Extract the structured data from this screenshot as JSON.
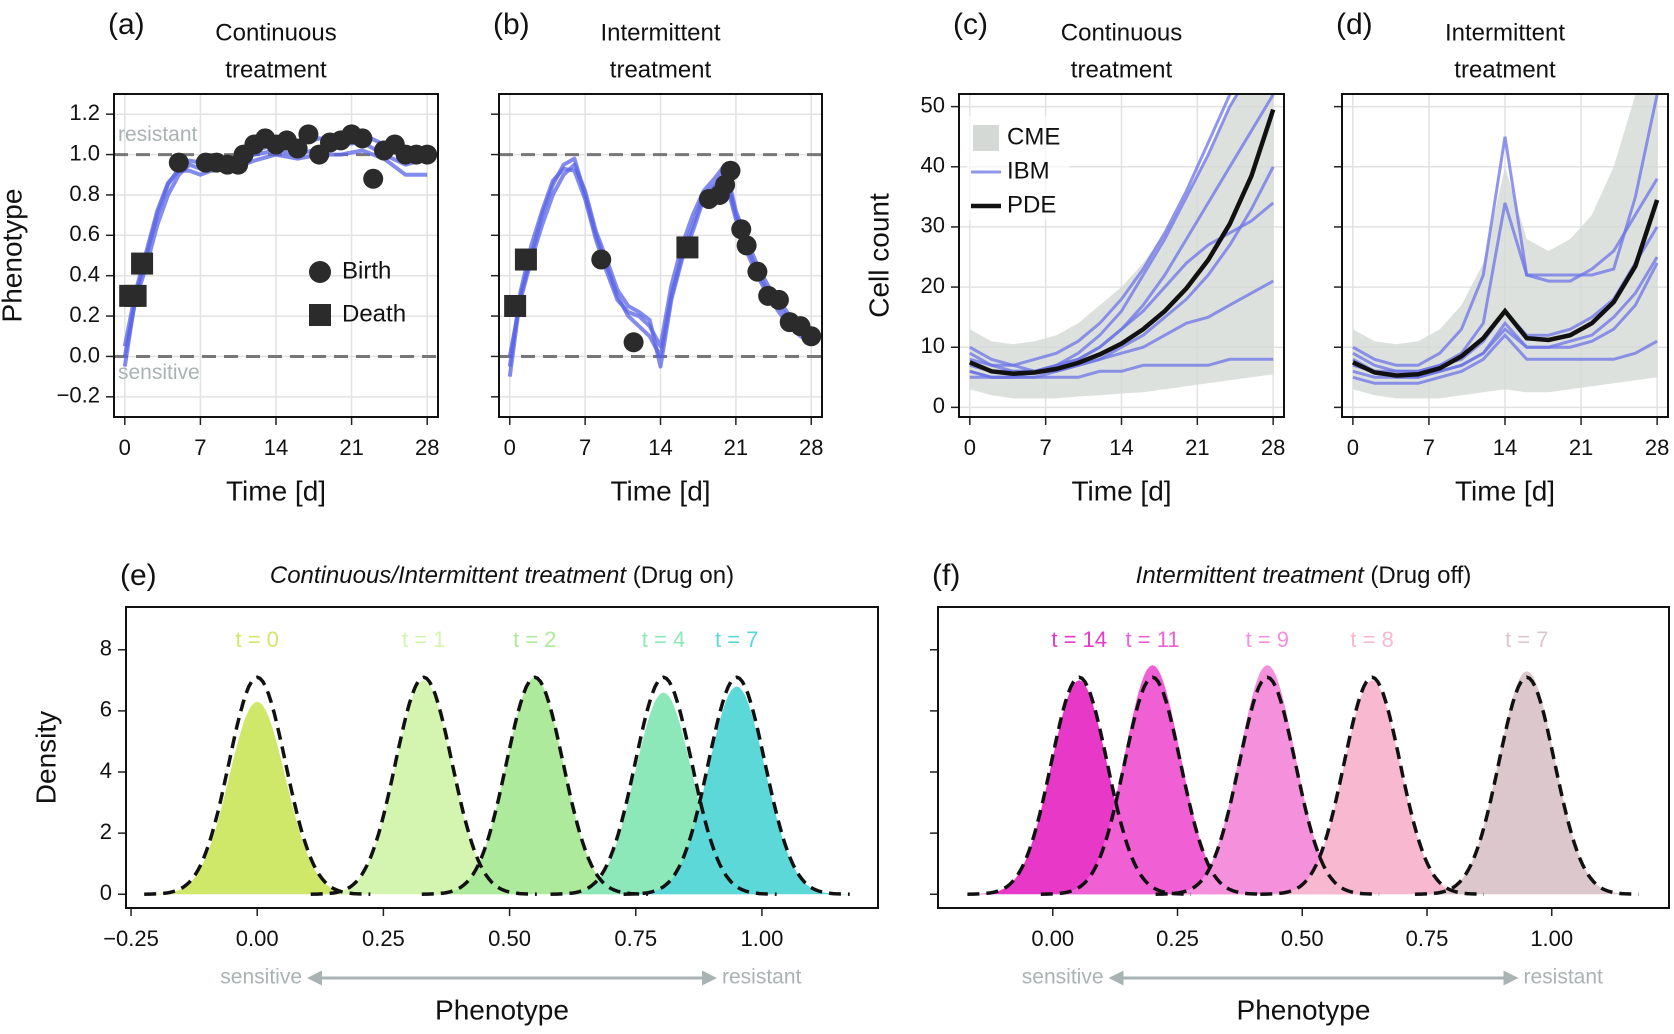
{
  "chart_data": [
    {
      "type": "line",
      "label": "(a)",
      "title_lines": [
        "Continuous",
        "treatment"
      ],
      "xlabel": "Time [d]",
      "ylabel": "Phenotype",
      "xlim": [
        -1,
        29
      ],
      "ylim": [
        -0.3,
        1.3
      ],
      "xticks": [
        0,
        7,
        14,
        21,
        28
      ],
      "yticks": [
        {
          "value": -0.2,
          "label": "−0.2"
        },
        {
          "value": 0,
          "label": "0.0"
        },
        0.2,
        0.4,
        0.6,
        0.8,
        {
          "value": 1,
          "label": "1.0"
        },
        1.2
      ],
      "grid": true,
      "legend": "center right",
      "hlines": [
        {
          "value": 0,
          "label": "sensitive"
        },
        {
          "value": 1,
          "label": "resistant"
        }
      ],
      "series": [
        {
          "color": "#5a64e6",
          "x": [
            0,
            1,
            2,
            3,
            4,
            5,
            6,
            7,
            8,
            10,
            12,
            14,
            16,
            18,
            20,
            22,
            24,
            26,
            28
          ],
          "values": [
            -0.05,
            0.3,
            0.5,
            0.7,
            0.85,
            0.93,
            0.97,
            0.96,
            0.98,
            0.97,
            1.02,
            1.05,
            1.05,
            1.08,
            1.07,
            1.1,
            1.05,
            1.02,
            1.0
          ]
        },
        {
          "color": "#5a64e6",
          "x": [
            0,
            1,
            2,
            3,
            4,
            5,
            6,
            7,
            8,
            10,
            12,
            14,
            16,
            18,
            20,
            22,
            24,
            26,
            28
          ],
          "values": [
            0,
            0.28,
            0.45,
            0.65,
            0.8,
            0.9,
            0.95,
            0.93,
            0.95,
            0.96,
            1.0,
            1.02,
            1.0,
            1.03,
            1.05,
            1.06,
            1.0,
            0.95,
            0.98
          ]
        },
        {
          "color": "#5a64e6",
          "x": [
            0,
            1,
            2,
            3,
            4,
            5,
            6,
            7,
            8,
            10,
            12,
            14,
            16,
            18,
            20,
            22,
            24,
            26,
            28
          ],
          "values": [
            0.05,
            0.32,
            0.52,
            0.72,
            0.86,
            0.92,
            0.92,
            0.9,
            0.92,
            0.93,
            0.97,
            1.0,
            0.98,
            1.0,
            1.0,
            1.02,
            0.98,
            0.9,
            0.9
          ]
        }
      ],
      "markers": [
        {
          "name": "Birth",
          "shape": "circle",
          "color": "#2b2b2b",
          "x": [
            5,
            7.5,
            8.5,
            9.5,
            10.5,
            11,
            12,
            13,
            14,
            15,
            16,
            17,
            18,
            19,
            20,
            21,
            22,
            23,
            24,
            25,
            26,
            27,
            28
          ],
          "values": [
            0.96,
            0.96,
            0.96,
            0.95,
            0.95,
            1.0,
            1.05,
            1.08,
            1.05,
            1.07,
            1.03,
            1.1,
            1.0,
            1.06,
            1.07,
            1.1,
            1.08,
            0.88,
            1.02,
            1.05,
            1.0,
            1.0,
            1.0
          ]
        },
        {
          "name": "Death",
          "shape": "square",
          "color": "#2b2b2b",
          "x": [
            0.5,
            1,
            1.6
          ],
          "values": [
            0.3,
            0.3,
            0.46
          ]
        }
      ]
    },
    {
      "type": "line",
      "label": "(b)",
      "title_lines": [
        "Intermittent",
        "treatment"
      ],
      "xlabel": "Time [d]",
      "xlim": [
        -1,
        29
      ],
      "ylim": [
        -0.3,
        1.3
      ],
      "xticks": [
        0,
        7,
        14,
        21,
        28
      ],
      "yticks": [
        -0.2,
        0,
        0.2,
        0.4,
        0.6,
        0.8,
        1,
        1.2
      ],
      "ytick_labels": false,
      "grid": true,
      "hlines": [
        0,
        1
      ],
      "series": [
        {
          "color": "#5a64e6",
          "x": [
            0,
            1,
            2,
            3,
            4,
            5,
            6,
            7,
            8,
            9,
            10,
            11,
            12,
            13,
            14,
            15,
            16,
            17,
            18,
            19,
            20,
            21,
            22,
            23,
            24,
            25,
            26,
            27,
            28
          ],
          "values": [
            -0.1,
            0.3,
            0.5,
            0.7,
            0.85,
            0.95,
            0.98,
            0.8,
            0.6,
            0.45,
            0.3,
            0.2,
            0.15,
            0.1,
            0.0,
            0.3,
            0.5,
            0.65,
            0.8,
            0.85,
            0.92,
            0.7,
            0.55,
            0.42,
            0.32,
            0.25,
            0.18,
            0.13,
            0.1
          ]
        },
        {
          "color": "#5a64e6",
          "x": [
            0,
            1,
            2,
            3,
            4,
            5,
            6,
            7,
            8,
            9,
            10,
            11,
            12,
            13,
            14,
            15,
            16,
            17,
            18,
            19,
            20,
            21,
            22,
            23,
            24,
            25,
            26,
            27,
            28
          ],
          "values": [
            -0.05,
            0.32,
            0.55,
            0.72,
            0.87,
            0.93,
            0.92,
            0.78,
            0.58,
            0.42,
            0.28,
            0.22,
            0.2,
            0.15,
            0.05,
            0.35,
            0.55,
            0.7,
            0.82,
            0.88,
            0.95,
            0.72,
            0.58,
            0.45,
            0.35,
            0.28,
            0.2,
            0.16,
            0.12
          ]
        },
        {
          "color": "#5a64e6",
          "x": [
            0,
            1,
            2,
            3,
            4,
            5,
            6,
            7,
            8,
            9,
            10,
            11,
            12,
            13,
            14,
            15,
            16,
            17,
            18,
            19,
            20,
            21,
            22,
            23,
            24,
            25,
            26,
            27,
            28
          ],
          "values": [
            0.0,
            0.28,
            0.48,
            0.65,
            0.8,
            0.9,
            0.95,
            0.82,
            0.62,
            0.48,
            0.33,
            0.25,
            0.22,
            0.18,
            -0.05,
            0.28,
            0.48,
            0.62,
            0.78,
            0.84,
            0.88,
            0.68,
            0.52,
            0.4,
            0.3,
            0.22,
            0.15,
            0.1,
            0.07
          ]
        }
      ],
      "markers": [
        {
          "shape": "circle",
          "color": "#2b2b2b",
          "x": [
            8.5,
            11.5,
            18.5,
            19.5,
            20,
            20.5,
            21.5,
            22,
            23,
            24,
            25,
            26,
            27,
            28
          ],
          "values": [
            0.48,
            0.07,
            0.78,
            0.8,
            0.85,
            0.92,
            0.63,
            0.55,
            0.42,
            0.3,
            0.28,
            0.17,
            0.15,
            0.1
          ]
        },
        {
          "shape": "square",
          "color": "#2b2b2b",
          "x": [
            0.5,
            1.5,
            16.5
          ],
          "values": [
            0.25,
            0.48,
            0.54
          ]
        }
      ]
    },
    {
      "type": "step",
      "label": "(c)",
      "title_lines": [
        "Continuous",
        "treatment"
      ],
      "xlabel": "Time [d]",
      "ylabel": "Cell count",
      "xlim": [
        -1,
        29
      ],
      "ylim": [
        -1.6,
        52.1
      ],
      "xticks": [
        0,
        7,
        14,
        21,
        28
      ],
      "yticks": [
        0,
        10,
        20,
        30,
        40,
        50
      ],
      "grid": true,
      "legend": "upper left",
      "band": {
        "name": "CME",
        "color": "#d5d9d6",
        "x": [
          0,
          2,
          4,
          6,
          8,
          10,
          12,
          14,
          16,
          18,
          20,
          22,
          24,
          26,
          28
        ],
        "lower": [
          3,
          2,
          1.5,
          1.5,
          1.5,
          1.8,
          2,
          2.3,
          2.5,
          3,
          3.5,
          4,
          4.5,
          5,
          5.5
        ],
        "upper": [
          13,
          11,
          10.5,
          11,
          12,
          14,
          17,
          20,
          24,
          29,
          35,
          42,
          50,
          58,
          66
        ]
      },
      "ibm": {
        "name": "IBM",
        "color": "#6b73e6",
        "x": [
          0,
          2,
          4,
          6,
          8,
          10,
          12,
          14,
          16,
          18,
          20,
          22,
          24,
          26,
          28
        ],
        "lines": [
          [
            10,
            8,
            7,
            6,
            7,
            9,
            12,
            16,
            22,
            28,
            35,
            42,
            50,
            56,
            60
          ],
          [
            7,
            6,
            6,
            6,
            7,
            8,
            10,
            13,
            17,
            22,
            28,
            34,
            40,
            46,
            52
          ],
          [
            5,
            5,
            5,
            5,
            5,
            5,
            6,
            6,
            7,
            7,
            7,
            7,
            8,
            8,
            8
          ],
          [
            6,
            5,
            5,
            5,
            6,
            7,
            8,
            9,
            10,
            12,
            14,
            15,
            17,
            19,
            21
          ],
          [
            9,
            7,
            6,
            6,
            7,
            8,
            10,
            13,
            16,
            20,
            24,
            27,
            29,
            31,
            34
          ],
          [
            8,
            7,
            7,
            8,
            9,
            11,
            14,
            18,
            23,
            29,
            36,
            44,
            52,
            58,
            62
          ],
          [
            6,
            5,
            5,
            6,
            6,
            7,
            8,
            10,
            12,
            15,
            18,
            22,
            27,
            33,
            40
          ]
        ]
      },
      "pde": {
        "name": "PDE",
        "color": "#111111",
        "x": [
          0,
          2,
          4,
          6,
          8,
          10,
          12,
          14,
          16,
          18,
          20,
          22,
          24,
          26,
          28
        ],
        "values": [
          7.5,
          6,
          5.6,
          5.8,
          6.4,
          7.4,
          8.8,
          10.6,
          13,
          16,
          19.8,
          24.5,
          30.5,
          38.5,
          49.5
        ]
      }
    },
    {
      "type": "step",
      "label": "(d)",
      "title_lines": [
        "Intermittent",
        "treatment"
      ],
      "xlabel": "Time [d]",
      "xlim": [
        -1,
        29
      ],
      "ylim": [
        -1.6,
        52.1
      ],
      "xticks": [
        0,
        7,
        14,
        21,
        28
      ],
      "yticks": [
        0,
        10,
        20,
        30,
        40,
        50
      ],
      "ytick_labels": false,
      "grid": true,
      "band": {
        "color": "#d5d9d6",
        "x": [
          0,
          2,
          4,
          6,
          8,
          10,
          12,
          14,
          16,
          18,
          20,
          22,
          24,
          26,
          28
        ],
        "lower": [
          3,
          2,
          1.5,
          1.5,
          1.5,
          2,
          2.5,
          3,
          2.5,
          2.5,
          3,
          3.5,
          4,
          4.5,
          5
        ],
        "upper": [
          13,
          11,
          10.5,
          11,
          13,
          17,
          24,
          40,
          28,
          26,
          28,
          32,
          40,
          52,
          64
        ]
      },
      "ibm": {
        "color": "#6b73e6",
        "x": [
          0,
          2,
          4,
          6,
          8,
          10,
          12,
          14,
          16,
          18,
          20,
          22,
          24,
          26,
          28
        ],
        "lines": [
          [
            10,
            8,
            7,
            7,
            9,
            13,
            22,
            45,
            22,
            22,
            22,
            22,
            23,
            35,
            52
          ],
          [
            9,
            7,
            6,
            6,
            7,
            9,
            14,
            34,
            22,
            21,
            21,
            23,
            26,
            32,
            38
          ],
          [
            6,
            5,
            5,
            5,
            6,
            7,
            9,
            14,
            10,
            10,
            10,
            11,
            13,
            17,
            24
          ],
          [
            5,
            4,
            4,
            4,
            5,
            6,
            8,
            12,
            8,
            8,
            8,
            8,
            8,
            9,
            11
          ],
          [
            8,
            6,
            6,
            6,
            7,
            8,
            11,
            16,
            12,
            12,
            13,
            15,
            18,
            24,
            30
          ],
          [
            7,
            6,
            5,
            5,
            6,
            7,
            9,
            13,
            10,
            10,
            11,
            12,
            15,
            19,
            25
          ]
        ]
      },
      "pde": {
        "color": "#111111",
        "x": [
          0,
          2,
          4,
          6,
          8,
          10,
          12,
          14,
          16,
          18,
          20,
          22,
          24,
          26,
          28
        ],
        "values": [
          7.5,
          5.8,
          5.3,
          5.5,
          6.5,
          8.5,
          11.5,
          16,
          11.5,
          11.2,
          12,
          14,
          17.5,
          23.5,
          34.5
        ]
      }
    },
    {
      "type": "density",
      "label": "(e)",
      "title_italic": "Continuous/Intermittent treatment",
      "title": "(Drug on)",
      "xlabel": "Phenotype",
      "ylabel": "Density",
      "xlim": [
        -0.26,
        1.23
      ],
      "ylim": [
        -0.45,
        9.4
      ],
      "xticks": [
        {
          "value": -0.25,
          "label": "−0.25"
        },
        {
          "value": 0,
          "label": "0.00"
        },
        0.25,
        {
          "value": 0.5,
          "label": "0.50"
        },
        0.75,
        {
          "value": 1,
          "label": "1.00"
        }
      ],
      "yticks": [
        0,
        2,
        4,
        6,
        8
      ],
      "grid": false,
      "arrow_labels": [
        "sensitive",
        "resistant"
      ],
      "fit_peak": 7.1,
      "series": [
        {
          "name": "t = 0",
          "color": "#cfe86a",
          "mean": 0.0,
          "sd": 0.056,
          "peak": 6.3
        },
        {
          "name": "t = 1",
          "color": "#d3f5b0",
          "mean": 0.33,
          "sd": 0.056,
          "peak": 7.0
        },
        {
          "name": "t = 2",
          "color": "#aeea9c",
          "mean": 0.55,
          "sd": 0.056,
          "peak": 7.1
        },
        {
          "name": "t = 4",
          "color": "#8ce8b8",
          "mean": 0.805,
          "sd": 0.056,
          "peak": 6.6
        },
        {
          "name": "t = 7",
          "color": "#5cd8d8",
          "mean": 0.95,
          "sd": 0.056,
          "peak": 6.8
        }
      ]
    },
    {
      "type": "density",
      "label": "(f)",
      "title_italic": "Intermittent treatment",
      "title": "(Drug off)",
      "xlabel": "Phenotype",
      "xlim": [
        -0.23,
        1.235
      ],
      "ylim": [
        -0.45,
        9.4
      ],
      "xticks": [
        {
          "value": 0,
          "label": "0.00"
        },
        0.25,
        {
          "value": 0.5,
          "label": "0.50"
        },
        0.75,
        {
          "value": 1,
          "label": "1.00"
        }
      ],
      "yticks": [
        0,
        2,
        4,
        6,
        8
      ],
      "ytick_labels": false,
      "grid": false,
      "arrow_labels": [
        "sensitive",
        "resistant"
      ],
      "fit_peak": 7.1,
      "series": [
        {
          "name": "t = 14",
          "color": "#e838c8",
          "mean": 0.053,
          "sd": 0.056,
          "peak": 7.0
        },
        {
          "name": "t = 11",
          "color": "#f060d4",
          "mean": 0.2,
          "sd": 0.056,
          "peak": 7.5
        },
        {
          "name": "t = 9",
          "color": "#f590dc",
          "mean": 0.43,
          "sd": 0.056,
          "peak": 7.5
        },
        {
          "name": "t = 8",
          "color": "#f8b8d0",
          "mean": 0.64,
          "sd": 0.056,
          "peak": 7.0
        },
        {
          "name": "t = 7",
          "color": "#dcc8cc",
          "mean": 0.95,
          "sd": 0.056,
          "peak": 7.3
        }
      ]
    }
  ]
}
